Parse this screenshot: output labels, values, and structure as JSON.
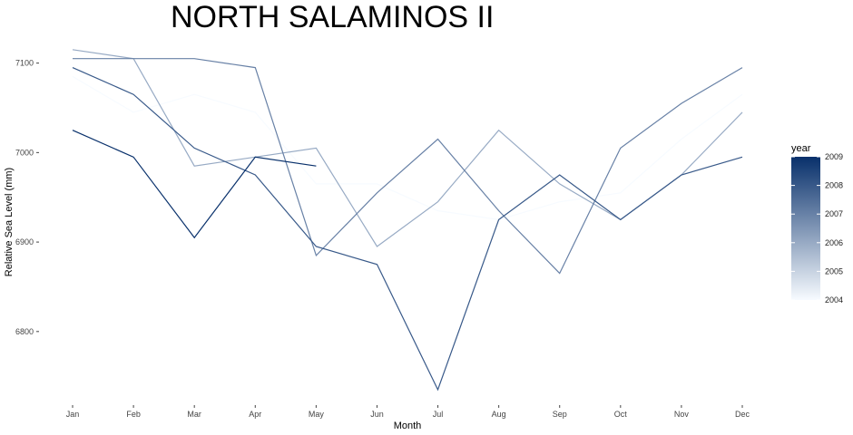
{
  "chart_data": {
    "type": "line",
    "title": "NORTH SALAMINOS II",
    "xlabel": "Month",
    "ylabel": "Relative Sea Level (mm)",
    "categories": [
      "Jan",
      "Feb",
      "Mar",
      "Apr",
      "May",
      "Jun",
      "Jul",
      "Aug",
      "Sep",
      "Oct",
      "Nov",
      "Dec"
    ],
    "ylim": [
      6735,
      7130
    ],
    "yticks": [
      6800,
      6900,
      7000,
      7100
    ],
    "grid": false,
    "legend": {
      "title": "year",
      "placement": "right",
      "min": 2004,
      "max": 2009,
      "ticks": [
        2004,
        2005,
        2006,
        2007,
        2008,
        2009
      ],
      "color_low": "#f7fbff",
      "color_high": "#08306b"
    },
    "series": [
      {
        "year": 2004,
        "values": [
          7085,
          7045,
          7065,
          7045,
          6965,
          6965,
          6935,
          6925,
          6945,
          6955,
          7015,
          7065
        ]
      },
      {
        "year": 2006,
        "values": [
          7115,
          7105,
          6985,
          6995,
          7005,
          6895,
          6945,
          7025,
          6965,
          6925,
          6975,
          7045
        ]
      },
      {
        "year": 2007,
        "values": [
          7105,
          7105,
          7105,
          7095,
          6885,
          6955,
          7015,
          6935,
          6865,
          7005,
          7055,
          7095
        ]
      },
      {
        "year": 2008,
        "values": [
          7095,
          7065,
          7005,
          6975,
          6895,
          6875,
          6735,
          6925,
          6975,
          6925,
          6975,
          6995
        ]
      },
      {
        "year": 2009,
        "values": [
          7025,
          6995,
          6905,
          6995,
          6985,
          null,
          null,
          null,
          null,
          null,
          null,
          null
        ]
      }
    ]
  }
}
